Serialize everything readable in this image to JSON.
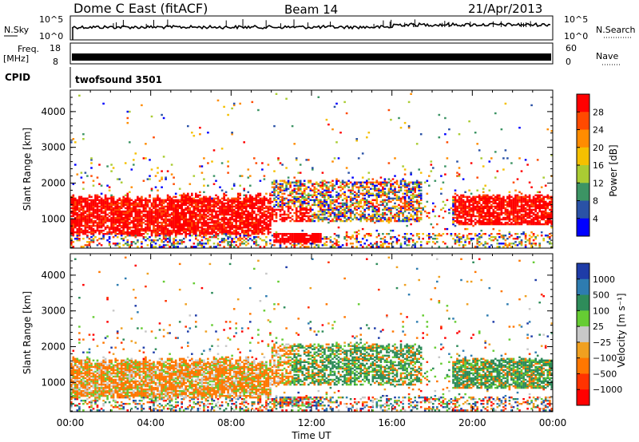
{
  "header": {
    "title": "Dome C East (fitACF)",
    "beam": "Beam 14",
    "date": "21/Apr/2013"
  },
  "strip": {
    "nsky_label": "N.Sky",
    "nsky_ticks": [
      "10^5",
      "10^0"
    ],
    "nsearch_label": "N.Search",
    "nsearch_ticks": [
      "10^5",
      "10^0"
    ],
    "freq_label": "Freq.",
    "freq_unit": "[MHz]",
    "freq_ticks": [
      "18",
      "8"
    ],
    "nave_label": "Nave",
    "nave_ticks": [
      "60",
      "0"
    ],
    "cpid_label": "CPID",
    "cpid_value": "twofsound 3501"
  },
  "chart_data": [
    {
      "type": "heatmap",
      "name": "power-panel",
      "xlabel": "",
      "ylabel": "Slant Range [km]",
      "yticks": [
        1000,
        2000,
        3000,
        4000
      ],
      "ylim": [
        180,
        4600
      ],
      "xlim": [
        0,
        24
      ],
      "colorbar_label": "Power [dB]",
      "colorbar_ticks": [
        "28",
        "24",
        "20",
        "16",
        "12",
        "8",
        "4"
      ],
      "colorbar_colors": [
        "#ff0000",
        "#ff4a00",
        "#ff8c00",
        "#f5c000",
        "#aacc33",
        "#3c9464",
        "#2a52a6",
        "#0000ff"
      ]
    },
    {
      "type": "heatmap",
      "name": "velocity-panel",
      "xlabel": "Time UT",
      "ylabel": "Slant Range [km]",
      "xticks": [
        "00:00",
        "04:00",
        "08:00",
        "12:00",
        "16:00",
        "20:00",
        "00:00"
      ],
      "yticks": [
        1000,
        2000,
        3000,
        4000
      ],
      "ylim": [
        180,
        4600
      ],
      "xlim": [
        0,
        24
      ],
      "colorbar_label": "Velocity [m s⁻¹]",
      "colorbar_ticks": [
        "1000",
        "500",
        "100",
        "25",
        "−25",
        "−100",
        "−500",
        "−1000"
      ],
      "colorbar_colors": [
        "#1e3ca8",
        "#2e7cb0",
        "#2e8c5a",
        "#66cc33",
        "#c8c8c8",
        "#f0a020",
        "#ff7700",
        "#ff3300",
        "#ff0000"
      ]
    }
  ]
}
